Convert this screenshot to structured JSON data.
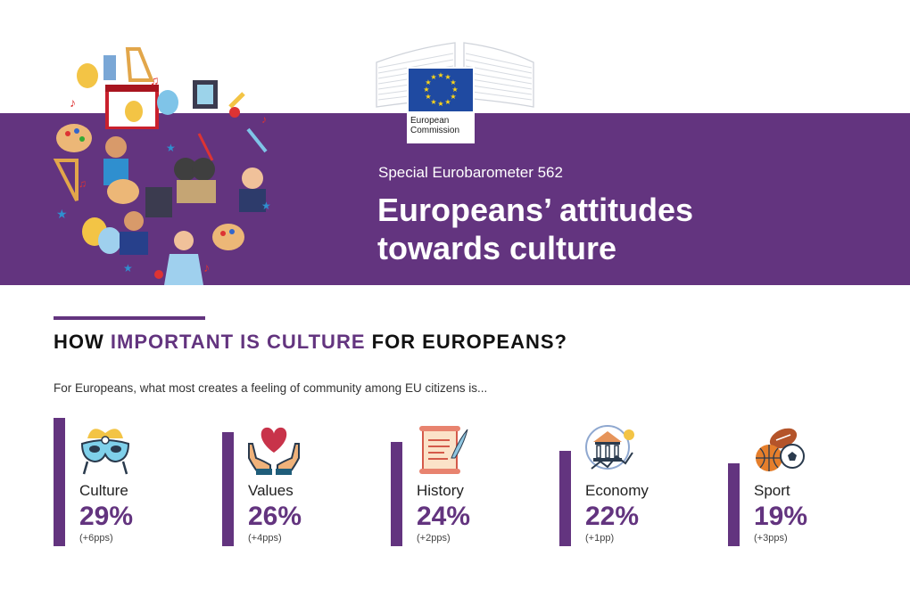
{
  "header": {
    "logo_text_line1": "European",
    "logo_text_line2": "Commission",
    "subtitle": "Special Eurobarometer 562",
    "title_line1": "Europeans’ attitudes",
    "title_line2": "towards culture"
  },
  "section": {
    "heading_part1": "HOW ",
    "heading_highlight": "IMPORTANT IS CULTURE",
    "heading_part2": " FOR EUROPEANS?",
    "question": "For Europeans, what most creates a feeling of community among EU citizens is..."
  },
  "stats": [
    {
      "label": "Culture",
      "value": "29%",
      "change": "(+6pps)",
      "icon": "mask-icon"
    },
    {
      "label": "Values",
      "value": "26%",
      "change": "(+4pps)",
      "icon": "heart-hands-icon"
    },
    {
      "label": "History",
      "value": "24%",
      "change": "(+2pps)",
      "icon": "scroll-quill-icon"
    },
    {
      "label": "Economy",
      "value": "22%",
      "change": "(+1pp)",
      "icon": "bank-chart-icon"
    },
    {
      "label": "Sport",
      "value": "19%",
      "change": "(+3pps)",
      "icon": "balls-icon"
    }
  ],
  "colors": {
    "accent": "#63347f",
    "eu_blue": "#1f4aa1",
    "eu_star": "#ffd617"
  }
}
